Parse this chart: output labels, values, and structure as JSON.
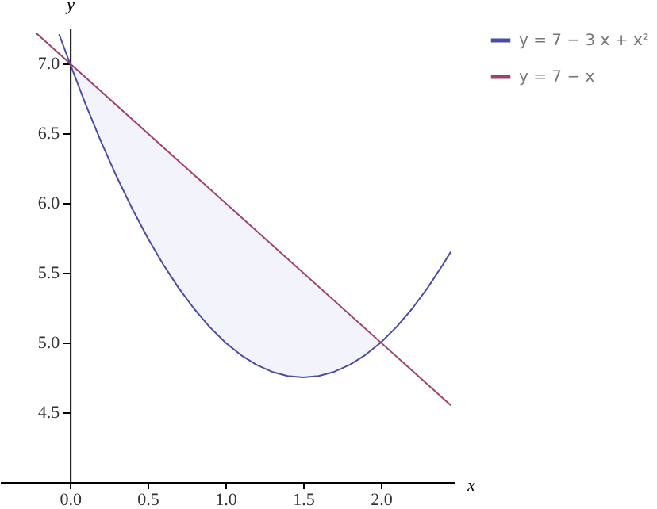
{
  "chart_data": {
    "type": "line",
    "xlabel": "x",
    "ylabel": "y",
    "xlim": [
      -0.45,
      2.47
    ],
    "ylim": [
      4.0,
      7.25
    ],
    "xticks": [
      {
        "value": 0,
        "label": "0.0"
      },
      0.5,
      {
        "value": 1,
        "label": "1.0"
      },
      1.5,
      {
        "value": 2,
        "label": "2.0"
      }
    ],
    "yticks": [
      4.5,
      {
        "value": 5,
        "label": "5.0"
      },
      5.5,
      {
        "value": 6,
        "label": "6.0"
      },
      6.5,
      {
        "value": 7,
        "label": "7.0"
      }
    ],
    "grid": false,
    "legend": "right",
    "series": [
      {
        "name": "y = 7 − 3 x + x²",
        "color": "#4b4ba8",
        "x": [
          -0.07,
          0,
          0.1,
          0.2,
          0.3,
          0.4,
          0.5,
          0.6,
          0.7,
          0.8,
          0.9,
          1.0,
          1.1,
          1.2,
          1.3,
          1.4,
          1.5,
          1.6,
          1.7,
          1.8,
          1.9,
          2.0,
          2.1,
          2.2,
          2.3,
          2.4,
          2.45
        ],
        "values": [
          7.21,
          7,
          6.71,
          6.44,
          6.19,
          5.96,
          5.75,
          5.56,
          5.39,
          5.24,
          5.11,
          5.0,
          4.91,
          4.84,
          4.79,
          4.76,
          4.75,
          4.76,
          4.79,
          4.84,
          4.91,
          5.0,
          5.11,
          5.24,
          5.39,
          5.56,
          5.65
        ],
        "lower": [
          null,
          7,
          6.71,
          6.44,
          6.19,
          5.96,
          5.75,
          5.56,
          5.39,
          5.24,
          5.11,
          5.0,
          4.91,
          4.84,
          4.79,
          4.76,
          4.75,
          4.76,
          4.79,
          4.84,
          4.91,
          5.0,
          null,
          null,
          null,
          null,
          null
        ],
        "upper": [
          null,
          7,
          6.9,
          6.8,
          6.7,
          6.6,
          6.5,
          6.4,
          6.3,
          6.2,
          6.1,
          6.0,
          5.9,
          5.8,
          5.7,
          5.6,
          5.5,
          5.4,
          5.3,
          5.2,
          5.1,
          5.0,
          null,
          null,
          null,
          null,
          null
        ]
      },
      {
        "name": "y = 7 − x",
        "color": "#a0406e",
        "x": [
          -0.22,
          2.45
        ],
        "values": [
          7.22,
          4.55
        ]
      }
    ]
  }
}
